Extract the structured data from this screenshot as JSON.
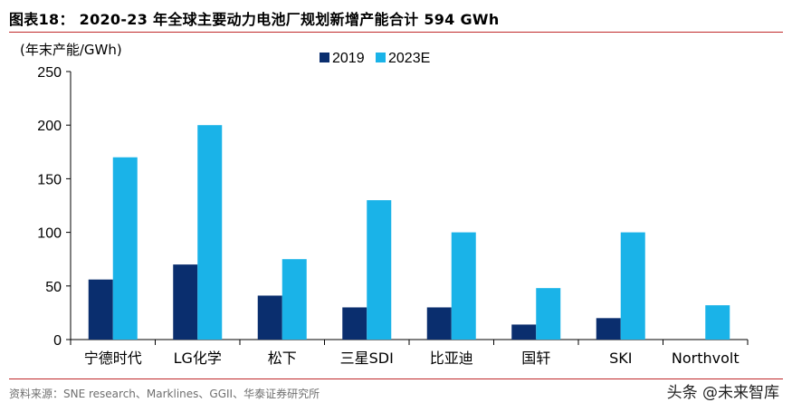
{
  "header": {
    "title": "图表18：  2020-23 年全球主要动力电池厂规划新增产能合计 594 GWh"
  },
  "footer": {
    "source": "资料来源：SNE research、Marklines、GGII、华泰证券研究所",
    "watermark": "头条 @未来智库"
  },
  "colors": {
    "accent_rule": "#c0292b",
    "series_2019": "#0a2e6e",
    "series_2023E": "#1ab3e8",
    "axis": "#000000"
  },
  "chart_data": {
    "type": "bar",
    "title": "",
    "ylabel": "(年末产能/GWh)",
    "xlabel": "",
    "ylim": [
      0,
      250
    ],
    "yticks": [
      0,
      50,
      100,
      150,
      200,
      250
    ],
    "grid": false,
    "legend_position": "top-center",
    "categories": [
      "宁德时代",
      "LG化学",
      "松下",
      "三星SDI",
      "比亚迪",
      "国轩",
      "SKI",
      "Northvolt"
    ],
    "series": [
      {
        "name": "2019",
        "color": "#0a2e6e",
        "values": [
          56,
          70,
          41,
          30,
          30,
          14,
          20,
          0
        ]
      },
      {
        "name": "2023E",
        "color": "#1ab3e8",
        "values": [
          170,
          200,
          75,
          130,
          100,
          48,
          100,
          32
        ]
      }
    ]
  }
}
